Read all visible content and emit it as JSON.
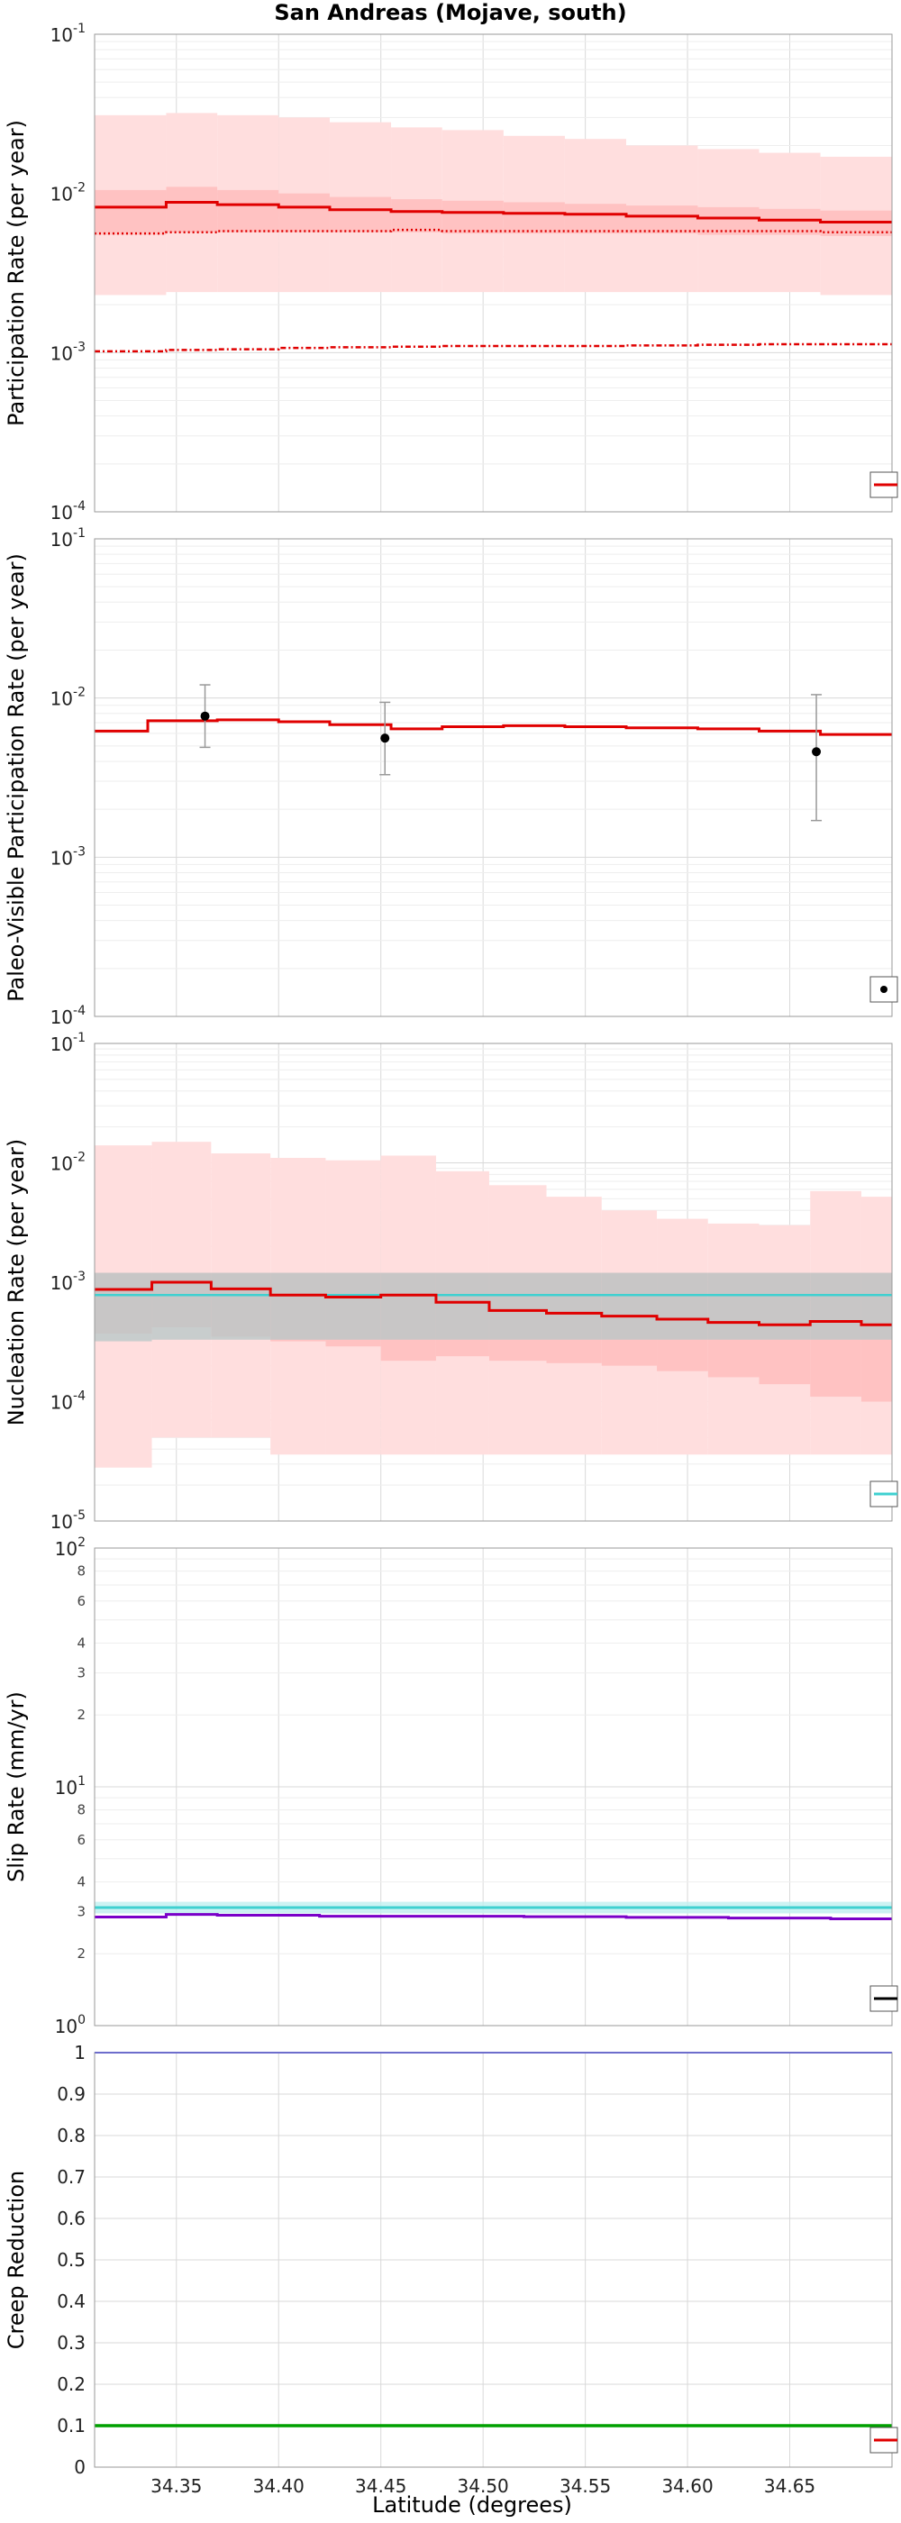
{
  "title": "San Andreas (Mojave,  south)",
  "xlabel": "Latitude (degrees)",
  "x_ticks": [
    "34.35",
    "34.40",
    "34.45",
    "34.50",
    "34.55",
    "34.60",
    "34.65"
  ],
  "colors": {
    "red": "#e00000",
    "pink_band": "#ffdede",
    "pink_inner": "#ffbdbd",
    "gray_band": "#b6c7c7",
    "cyan": "#3fd0d0",
    "purple": "#7a00c8",
    "blue": "#4040ff",
    "green": "#00a000",
    "errorbar": "#999999"
  },
  "chart_data": [
    {
      "type": "line",
      "ylabel": "Participation Rate (per year)",
      "yscale": "log",
      "ylim": [
        0.0001,
        0.1
      ],
      "xlim": [
        34.31,
        34.7
      ],
      "x_edges": [
        34.31,
        34.345,
        34.37,
        34.4,
        34.425,
        34.455,
        34.48,
        34.51,
        34.54,
        34.57,
        34.605,
        34.635,
        34.665,
        34.7
      ],
      "series": [
        {
          "style": "band",
          "low": [
            0.0023,
            0.0024,
            0.0024,
            0.0024,
            0.0024,
            0.0024,
            0.0024,
            0.0024,
            0.0024,
            0.0024,
            0.0024,
            0.0024,
            0.0023
          ],
          "high": [
            0.031,
            0.032,
            0.031,
            0.03,
            0.028,
            0.026,
            0.025,
            0.023,
            0.022,
            0.02,
            0.019,
            0.018,
            0.017
          ]
        },
        {
          "style": "inner",
          "low": [
            0.0055,
            0.0057,
            0.0057,
            0.0057,
            0.0057,
            0.0057,
            0.0056,
            0.0056,
            0.0056,
            0.0056,
            0.0055,
            0.0055,
            0.0054
          ],
          "high": [
            0.0105,
            0.011,
            0.0105,
            0.01,
            0.0095,
            0.0092,
            0.009,
            0.0088,
            0.0086,
            0.0084,
            0.0082,
            0.008,
            0.0078
          ]
        },
        {
          "style": "solid",
          "values": [
            0.0082,
            0.0088,
            0.0085,
            0.0082,
            0.0079,
            0.0077,
            0.0076,
            0.0075,
            0.0074,
            0.0072,
            0.007,
            0.0068,
            0.0066
          ]
        },
        {
          "style": "dotted",
          "values": [
            0.0056,
            0.0057,
            0.0058,
            0.0058,
            0.0058,
            0.0059,
            0.0058,
            0.0058,
            0.0058,
            0.0058,
            0.0058,
            0.0058,
            0.0057
          ]
        },
        {
          "style": "dashdot",
          "values": [
            0.00102,
            0.00104,
            0.00105,
            0.00107,
            0.00108,
            0.00109,
            0.0011,
            0.0011,
            0.0011,
            0.00111,
            0.00112,
            0.00113,
            0.00113
          ]
        }
      ]
    },
    {
      "type": "line",
      "ylabel": "Paleo-Visible Participation Rate (per year)",
      "yscale": "log",
      "ylim": [
        0.0001,
        0.1
      ],
      "xlim": [
        34.31,
        34.7
      ],
      "x_edges": [
        34.31,
        34.336,
        34.37,
        34.4,
        34.425,
        34.455,
        34.48,
        34.51,
        34.54,
        34.57,
        34.605,
        34.635,
        34.665,
        34.7
      ],
      "series": [
        {
          "style": "solid",
          "values": [
            0.0062,
            0.0072,
            0.0073,
            0.0071,
            0.0068,
            0.0064,
            0.0066,
            0.0067,
            0.0066,
            0.0065,
            0.0064,
            0.0062,
            0.0059
          ]
        }
      ],
      "points": [
        {
          "x": 34.364,
          "y": 0.0077,
          "low": 0.0049,
          "high": 0.0121
        },
        {
          "x": 34.452,
          "y": 0.0056,
          "low": 0.0033,
          "high": 0.0094
        },
        {
          "x": 34.663,
          "y": 0.0046,
          "low": 0.0017,
          "high": 0.0105
        }
      ]
    },
    {
      "type": "line",
      "ylabel": "Nucleation Rate (per year)",
      "yscale": "log",
      "ylim": [
        1e-05,
        0.1
      ],
      "xlim": [
        34.31,
        34.7
      ],
      "x_edges": [
        34.31,
        34.338,
        34.367,
        34.396,
        34.423,
        34.45,
        34.477,
        34.503,
        34.531,
        34.558,
        34.585,
        34.61,
        34.635,
        34.66,
        34.685,
        34.7
      ],
      "series": [
        {
          "style": "band",
          "low": [
            2.8e-05,
            5e-05,
            5e-05,
            3.6e-05,
            3.6e-05,
            3.6e-05,
            3.6e-05,
            3.6e-05,
            3.6e-05,
            3.6e-05,
            3.6e-05,
            3.6e-05,
            3.6e-05,
            3.6e-05,
            3.6e-05
          ],
          "high": [
            0.014,
            0.015,
            0.012,
            0.011,
            0.0105,
            0.0115,
            0.0085,
            0.0065,
            0.0052,
            0.004,
            0.0034,
            0.0031,
            0.003,
            0.0058,
            0.0052
          ]
        },
        {
          "style": "inner",
          "low": [
            0.00037,
            0.00042,
            0.00035,
            0.00032,
            0.00029,
            0.00022,
            0.00024,
            0.00022,
            0.00021,
            0.0002,
            0.00018,
            0.00016,
            0.00014,
            0.00011,
            0.0001
          ],
          "high": [
            0.0012,
            0.0012,
            0.0012,
            0.0012,
            0.0012,
            0.0012,
            0.0012,
            0.0012,
            0.0012,
            0.0012,
            0.0012,
            0.0012,
            0.0012,
            0.0012,
            0.0012
          ]
        },
        {
          "style": "grayband",
          "low": [
            0.00032,
            0.00033,
            0.00033,
            0.00033,
            0.00033,
            0.00033,
            0.00033,
            0.00033,
            0.00033,
            0.00033,
            0.00033,
            0.00033,
            0.00033,
            0.00033,
            0.00033
          ],
          "high": [
            0.0012,
            0.0012,
            0.0012,
            0.0012,
            0.0012,
            0.0012,
            0.0012,
            0.0012,
            0.0012,
            0.0012,
            0.0012,
            0.0012,
            0.0012,
            0.0012,
            0.0012
          ]
        },
        {
          "style": "cyan",
          "values": [
            0.00078,
            0.00078,
            0.00078,
            0.00078,
            0.00078,
            0.00078,
            0.00078,
            0.00078,
            0.00078,
            0.00078,
            0.00078,
            0.00078,
            0.00078,
            0.00078,
            0.00078
          ]
        },
        {
          "style": "solid",
          "values": [
            0.00087,
            0.001,
            0.00088,
            0.00078,
            0.00075,
            0.00078,
            0.00068,
            0.00058,
            0.00055,
            0.00052,
            0.00049,
            0.00046,
            0.00044,
            0.00047,
            0.00044
          ]
        }
      ]
    },
    {
      "type": "line",
      "ylabel": "Slip Rate (mm/yr)",
      "yscale": "log",
      "ylim": [
        1,
        100
      ],
      "xlim": [
        34.31,
        34.7
      ],
      "series": [
        {
          "style": "cyanband",
          "x": [
            34.31,
            34.7
          ],
          "low": [
            2.95,
            2.95
          ],
          "high": [
            3.3,
            3.3
          ]
        },
        {
          "style": "cyan",
          "x": [
            34.31,
            34.7
          ],
          "values": [
            3.12,
            3.12
          ]
        },
        {
          "style": "purple",
          "x": [
            34.31,
            34.345,
            34.37,
            34.42,
            34.47,
            34.52,
            34.57,
            34.62,
            34.67,
            34.7
          ],
          "values": [
            2.85,
            2.92,
            2.9,
            2.87,
            2.87,
            2.86,
            2.84,
            2.82,
            2.8,
            2.78
          ]
        }
      ]
    },
    {
      "type": "line",
      "ylabel": "Creep Reduction",
      "yscale": "linear",
      "ylim": [
        0,
        1
      ],
      "xlim": [
        34.31,
        34.7
      ],
      "series": [
        {
          "style": "blue",
          "x": [
            34.31,
            34.7
          ],
          "values": [
            1.0,
            1.0
          ]
        },
        {
          "style": "green",
          "x": [
            34.31,
            34.7
          ],
          "values": [
            0.1,
            0.1
          ]
        }
      ]
    }
  ]
}
